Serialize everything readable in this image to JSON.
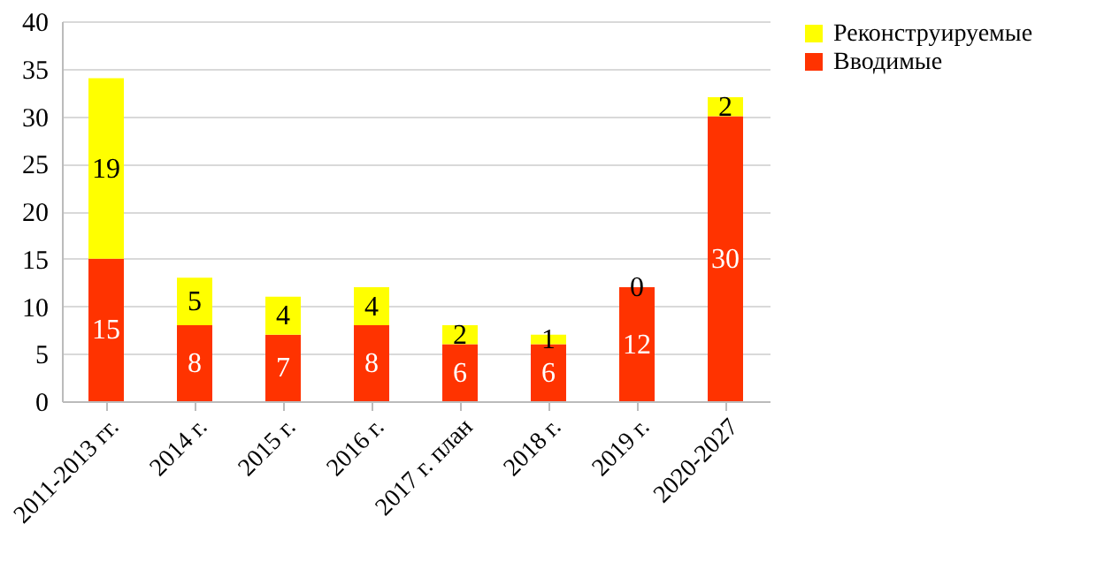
{
  "chart_data": {
    "type": "bar",
    "stacked": true,
    "categories": [
      "2011-2013 гг.",
      "2014 г.",
      "2015 г.",
      "2016 г.",
      "2017 г. план",
      "2018 г.",
      "2019 г.",
      "2020-2027"
    ],
    "series": [
      {
        "name": "Вводимые",
        "color": "#ff3300",
        "values": [
          15,
          8,
          7,
          8,
          6,
          6,
          12,
          30
        ]
      },
      {
        "name": "Реконструируемые",
        "color": "#ffff00",
        "values": [
          19,
          5,
          4,
          4,
          2,
          1,
          0,
          2
        ]
      }
    ],
    "ylim": [
      0,
      40
    ],
    "yticks": [
      0,
      5,
      10,
      15,
      20,
      25,
      30,
      35,
      40
    ],
    "grid": "y",
    "legend": "right",
    "data_labels": true
  }
}
